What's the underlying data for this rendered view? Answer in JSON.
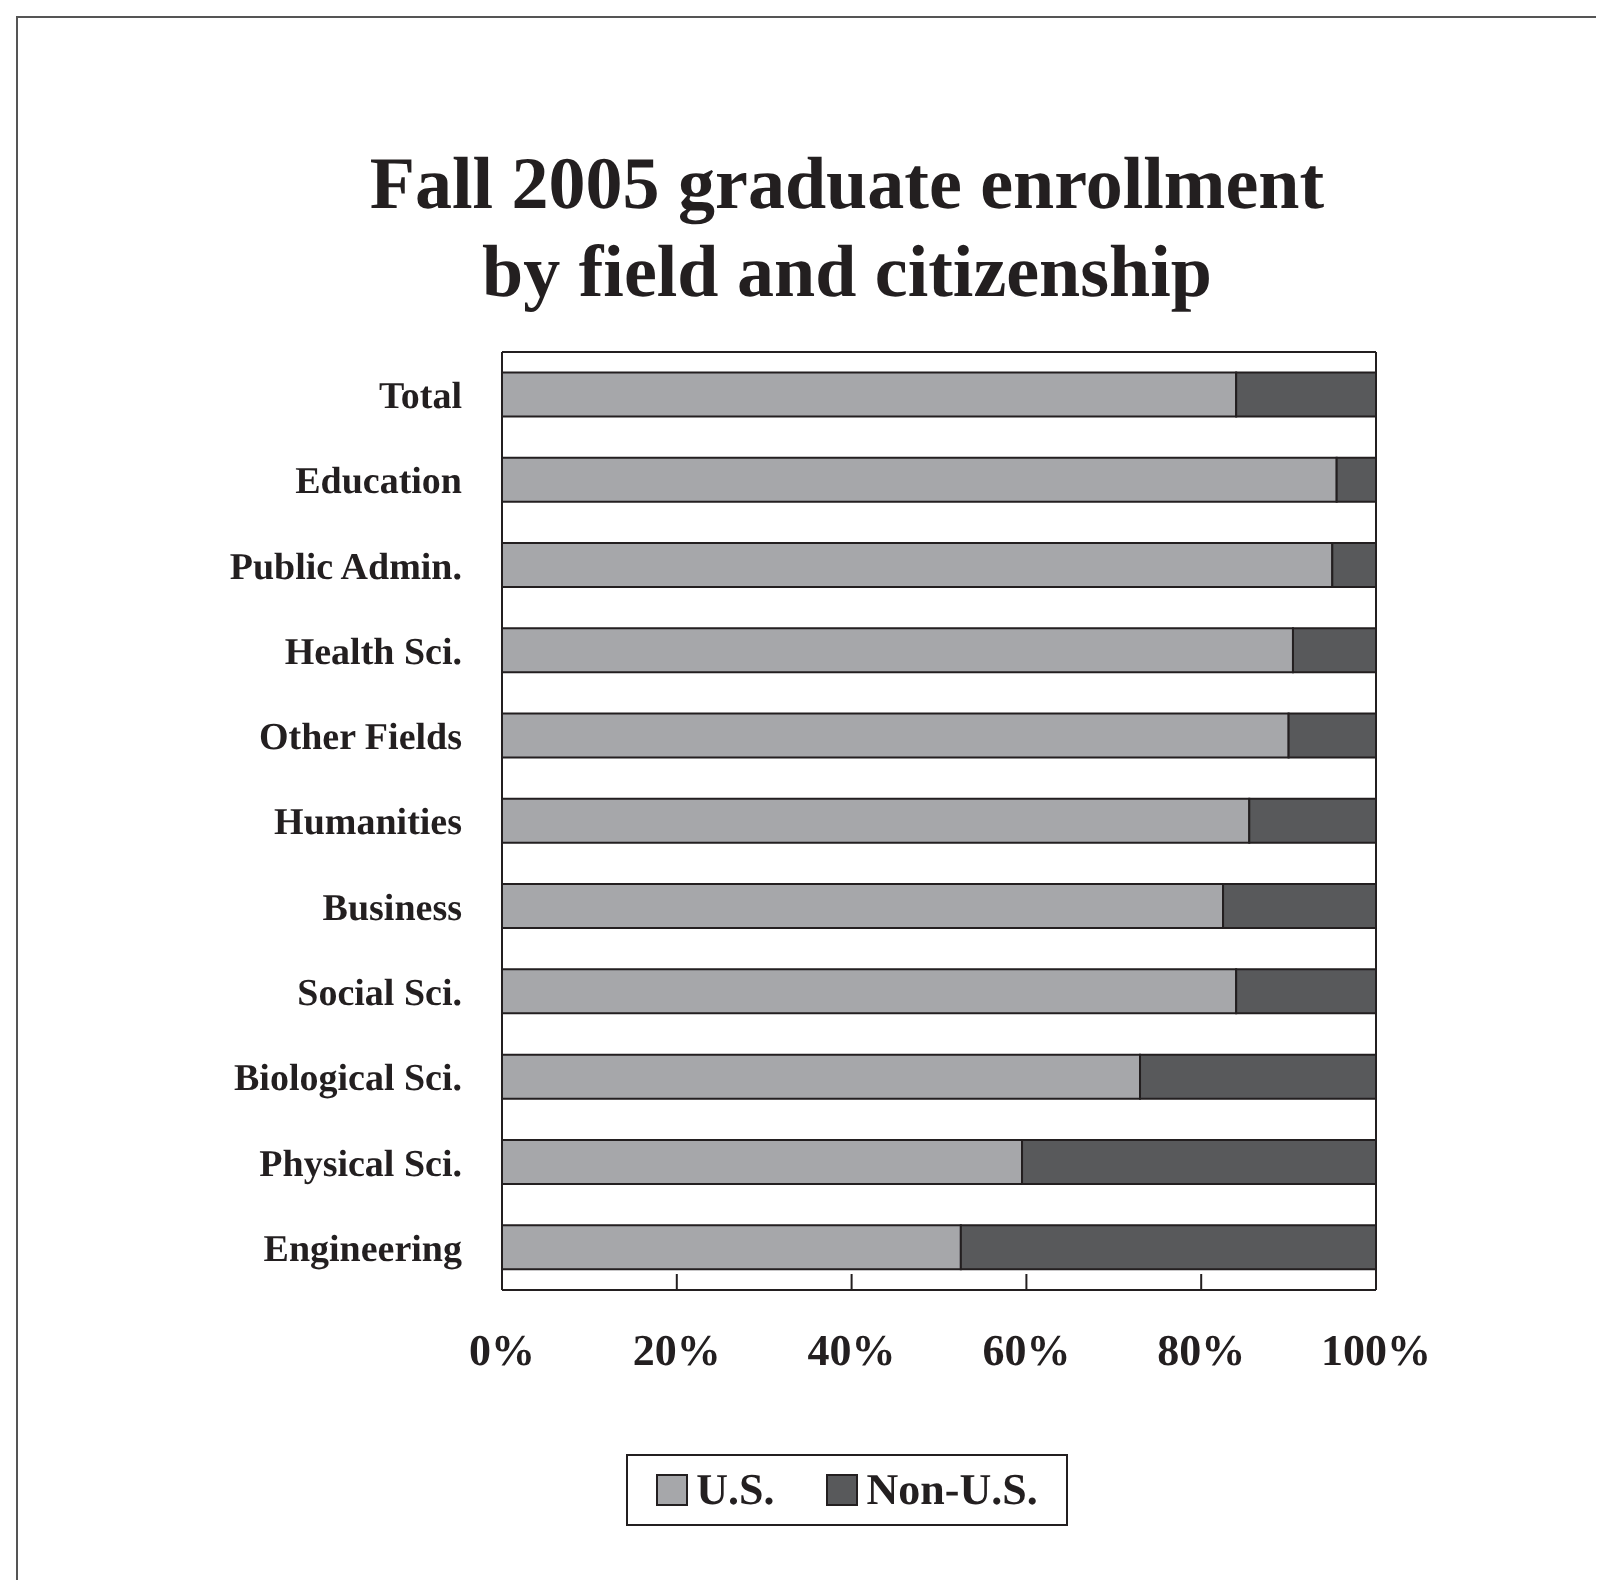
{
  "chart_data": {
    "type": "bar",
    "orientation": "horizontal",
    "stacked": true,
    "title": "Fall 2005 graduate enrollment\nby field and citizenship",
    "categories": [
      "Total",
      "Education",
      "Public Admin.",
      "Health Sci.",
      "Other Fields",
      "Humanities",
      "Business",
      "Social Sci.",
      "Biological Sci.",
      "Physical Sci.",
      "Engineering"
    ],
    "series": [
      {
        "name": "U.S.",
        "color": "#a6a7aa",
        "values": [
          84,
          95.5,
          95,
          90.5,
          90,
          85.5,
          82.5,
          84,
          73,
          59.5,
          52.5
        ]
      },
      {
        "name": "Non-U.S.",
        "color": "#58595b",
        "values": [
          16,
          4.5,
          5,
          9.5,
          10,
          14.5,
          17.5,
          16,
          27,
          40.5,
          47.5
        ]
      }
    ],
    "xlim": [
      0,
      100
    ],
    "xticks": [
      {
        "value": 0,
        "label": "0%"
      },
      {
        "value": 20,
        "label": "20%"
      },
      {
        "value": 40,
        "label": "40%"
      },
      {
        "value": 60,
        "label": "60%"
      },
      {
        "value": 80,
        "label": "80%"
      },
      {
        "value": 100,
        "label": "100%"
      }
    ],
    "legend": "bottom"
  }
}
